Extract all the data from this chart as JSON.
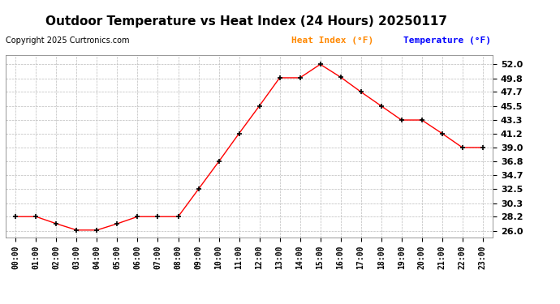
{
  "title": "Outdoor Temperature vs Heat Index (24 Hours) 20250117",
  "copyright": "Copyright 2025 Curtronics.com",
  "legend_heat": "Heat Index (°F)",
  "legend_temp": "Temperature (°F)",
  "hours": [
    "00:00",
    "01:00",
    "02:00",
    "03:00",
    "04:00",
    "05:00",
    "06:00",
    "07:00",
    "08:00",
    "09:00",
    "10:00",
    "11:00",
    "12:00",
    "13:00",
    "14:00",
    "15:00",
    "16:00",
    "17:00",
    "18:00",
    "19:00",
    "20:00",
    "21:00",
    "22:00",
    "23:00"
  ],
  "temperature": [
    28.2,
    28.2,
    27.1,
    26.1,
    26.1,
    27.1,
    28.2,
    28.2,
    28.2,
    32.5,
    36.8,
    41.2,
    45.5,
    49.9,
    49.9,
    52.0,
    50.0,
    47.7,
    45.5,
    43.3,
    43.3,
    41.2,
    39.0,
    39.0
  ],
  "line_color": "#ff0000",
  "marker": "+",
  "marker_color": "#000000",
  "marker_size": 5,
  "ylim": [
    25.0,
    53.5
  ],
  "yticks": [
    26.0,
    28.2,
    30.3,
    32.5,
    34.7,
    36.8,
    39.0,
    41.2,
    43.3,
    45.5,
    47.7,
    49.8,
    52.0
  ],
  "background_color": "#ffffff",
  "grid_color": "#bbbbbb",
  "title_fontsize": 11,
  "copyright_fontsize": 7,
  "legend_heat_color": "#ff8800",
  "legend_temp_color": "#0000ff",
  "legend_fontsize": 8
}
